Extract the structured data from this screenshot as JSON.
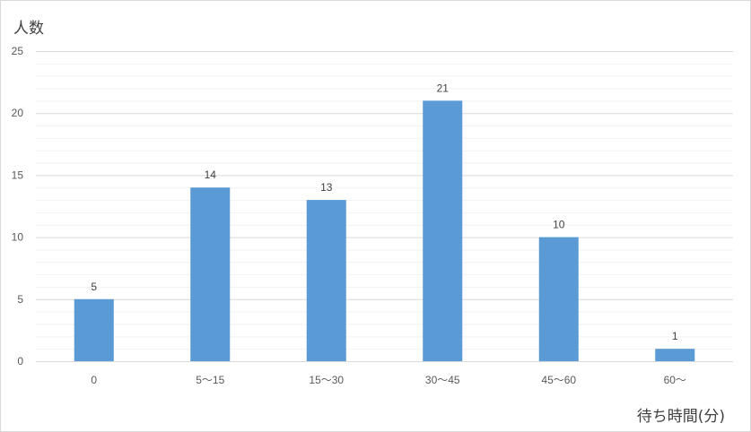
{
  "chart_data": {
    "type": "bar",
    "categories": [
      "0",
      "5～15",
      "15～30",
      "30～45",
      "45～60",
      "60～"
    ],
    "values": [
      5,
      14,
      13,
      21,
      10,
      1
    ],
    "xlabel": "待ち時間(分)",
    "ylabel": "人数",
    "ylim": [
      0,
      25
    ],
    "yticks": [
      0,
      5,
      10,
      15,
      20,
      25
    ],
    "grid": true,
    "legend": "none",
    "bar_color": "#5b9bd5",
    "data_labels": true
  }
}
